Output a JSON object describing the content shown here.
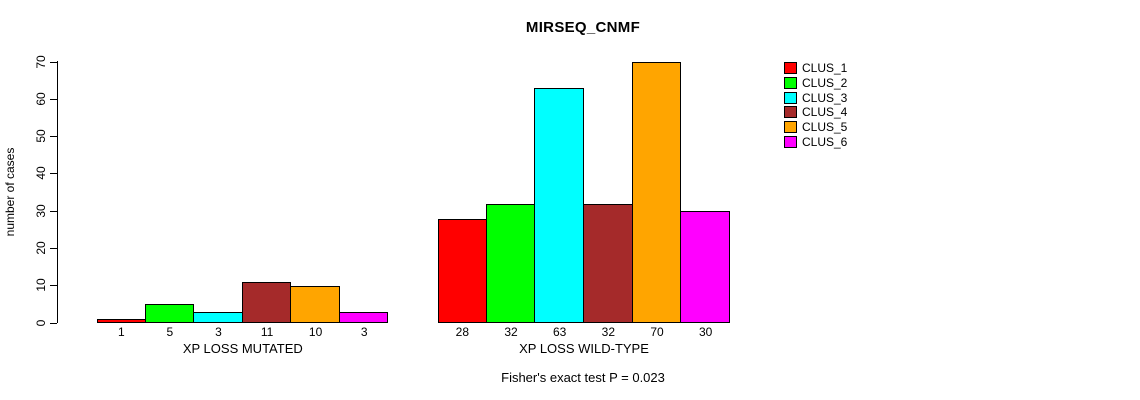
{
  "chart_data": {
    "type": "bar",
    "title": "MIRSEQ_CNMF",
    "ylabel": "number of cases",
    "xlabel": "",
    "ylim": [
      0,
      70
    ],
    "yticks": [
      0,
      10,
      20,
      30,
      40,
      50,
      60,
      70
    ],
    "grid": false,
    "legend_position": "right",
    "bar_value_labels_shown": true,
    "categories": [
      "XP LOSS MUTATED",
      "XP LOSS WILD-TYPE"
    ],
    "series": [
      {
        "name": "CLUS_1",
        "color": "#FF0000",
        "values": [
          1,
          28
        ]
      },
      {
        "name": "CLUS_2",
        "color": "#00FF00",
        "values": [
          5,
          32
        ]
      },
      {
        "name": "CLUS_3",
        "color": "#00FFFF",
        "values": [
          3,
          63
        ]
      },
      {
        "name": "CLUS_4",
        "color": "#A52A2A",
        "values": [
          11,
          32
        ]
      },
      {
        "name": "CLUS_5",
        "color": "#FFA500",
        "values": [
          10,
          70
        ]
      },
      {
        "name": "CLUS_6",
        "color": "#FF00FF",
        "values": [
          3,
          30
        ]
      }
    ],
    "annotation": "Fisher's exact test P = 0.023"
  }
}
